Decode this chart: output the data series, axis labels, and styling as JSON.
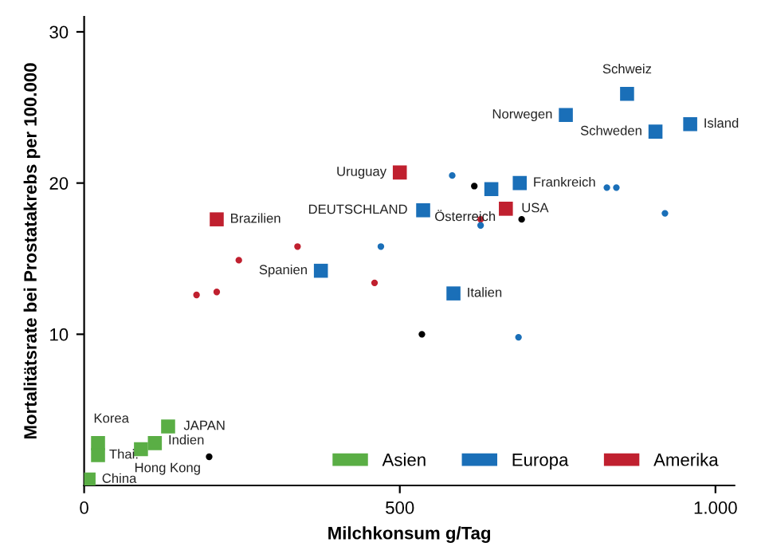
{
  "chart_data": {
    "type": "scatter",
    "xlabel": "Milchkonsum g/Tag",
    "ylabel": "Mortalitätsrate bei Prostatakrebs per 100.000",
    "xlim": [
      0,
      1030
    ],
    "ylim": [
      0,
      31
    ],
    "xticks": [
      0,
      500,
      {
        "value": 1000,
        "label": "1.000"
      }
    ],
    "yticks": [
      10,
      20,
      30
    ],
    "grid": false,
    "legend": "bottom right",
    "series": [
      {
        "name": "Asien",
        "color": "#5aae45",
        "marker": "square",
        "x": [
          22,
          22,
          90,
          112,
          133,
          7
        ],
        "values": [
          2.8,
          2.0,
          2.4,
          2.8,
          3.9,
          0.4
        ]
      },
      {
        "name": "Europa",
        "color": "#1a6fb8",
        "marker": "square",
        "x": [
          860,
          763,
          905,
          960,
          690,
          645,
          537,
          375,
          585
        ],
        "values": [
          25.9,
          24.5,
          23.4,
          23.9,
          20.0,
          19.6,
          18.2,
          14.2,
          12.7
        ]
      },
      {
        "name": "Amerika",
        "color": "#c0202f",
        "marker": "square",
        "x": [
          500,
          210,
          668
        ],
        "values": [
          20.7,
          17.6,
          18.3
        ]
      },
      {
        "color": "#c0202f",
        "marker": "circle",
        "x": [
          245,
          338,
          460,
          178,
          210,
          628
        ],
        "values": [
          14.9,
          15.8,
          13.4,
          12.6,
          12.8,
          17.6
        ]
      },
      {
        "color": "#1a6fb8",
        "marker": "circle",
        "x": [
          470,
          583,
          628,
          828,
          843,
          920,
          688
        ],
        "values": [
          15.8,
          20.5,
          17.2,
          19.7,
          19.7,
          18.0,
          9.8
        ]
      },
      {
        "color": "#000000",
        "marker": "circle",
        "x": [
          198,
          618,
          693,
          535
        ],
        "values": [
          1.9,
          19.8,
          17.6,
          10.0
        ]
      }
    ],
    "annotations": [
      {
        "text": "Schweiz",
        "x": 860,
        "y": 25.9
      },
      {
        "text": "Norwegen",
        "x": 763,
        "y": 24.5
      },
      {
        "text": "Schweden",
        "x": 905,
        "y": 23.4
      },
      {
        "text": "Island",
        "x": 960,
        "y": 23.9
      },
      {
        "text": "Frankreich",
        "x": 690,
        "y": 20.0
      },
      {
        "text": "Österreich",
        "x": 645,
        "y": 19.6
      },
      {
        "text": "DEUTSCHLAND",
        "x": 537,
        "y": 18.2
      },
      {
        "text": "Spanien",
        "x": 375,
        "y": 14.2
      },
      {
        "text": "Italien",
        "x": 585,
        "y": 12.7
      },
      {
        "text": "Uruguay",
        "x": 500,
        "y": 20.7
      },
      {
        "text": "Brazilien",
        "x": 210,
        "y": 17.6
      },
      {
        "text": "USA",
        "x": 668,
        "y": 18.3
      },
      {
        "text": "Korea",
        "x": 22,
        "y": 2.8
      },
      {
        "text": "Thai.",
        "x": 22,
        "y": 2.0
      },
      {
        "text": "Hong Kong",
        "x": 90,
        "y": 2.4
      },
      {
        "text": "Indien",
        "x": 112,
        "y": 2.8
      },
      {
        "text": "JAPAN",
        "x": 133,
        "y": 3.9
      },
      {
        "text": "China",
        "x": 7,
        "y": 0.4
      }
    ]
  }
}
